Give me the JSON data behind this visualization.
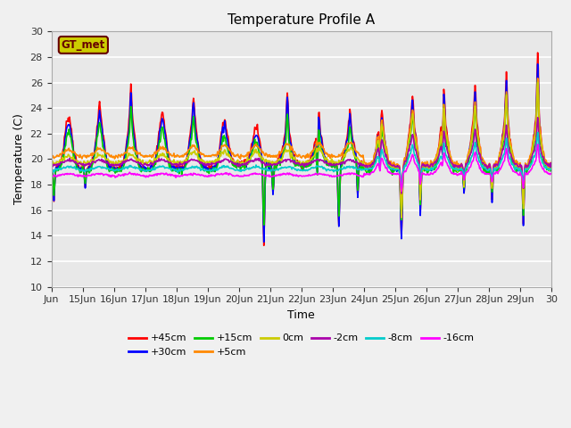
{
  "title": "Temperature Profile A",
  "xlabel": "Time",
  "ylabel": "Temperature (C)",
  "ylim": [
    10,
    30
  ],
  "bg_color": "#e8e8e8",
  "fig_color": "#f0f0f0",
  "series": {
    "+45cm": {
      "color": "#ff0000",
      "lw": 1.2
    },
    "+30cm": {
      "color": "#0000ff",
      "lw": 1.2
    },
    "+15cm": {
      "color": "#00cc00",
      "lw": 1.2
    },
    "+5cm": {
      "color": "#ff8800",
      "lw": 1.2
    },
    "0cm": {
      "color": "#cccc00",
      "lw": 1.2
    },
    "-2cm": {
      "color": "#aa00aa",
      "lw": 1.2
    },
    "-8cm": {
      "color": "#00cccc",
      "lw": 1.2
    },
    "-16cm": {
      "color": "#ff00ff",
      "lw": 1.2
    }
  },
  "xtick_labels": [
    "Jun",
    "15Jun",
    "16Jun",
    "17Jun",
    "18Jun",
    "19Jun",
    "20Jun",
    "21Jun",
    "22Jun",
    "23Jun",
    "24Jun",
    "25Jun",
    "26Jun",
    "27Jun",
    "28Jun",
    "29Jun",
    "30"
  ],
  "legend_label": "GT_met",
  "legend_box_color": "#cccc00",
  "legend_text_color": "#660000"
}
